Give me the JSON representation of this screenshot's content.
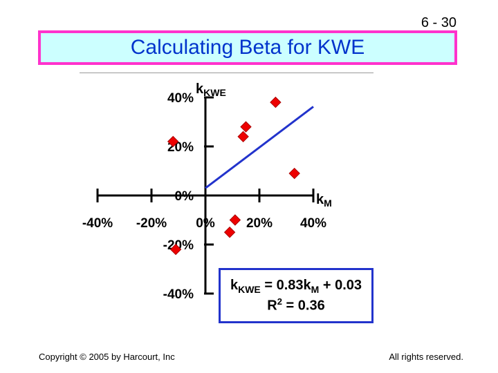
{
  "slide_number": "6 - 30",
  "title": "Calculating Beta for KWE",
  "chart_data": {
    "type": "scatter",
    "title": "Calculating Beta for KWE",
    "xlabel": "kM",
    "ylabel": "kKWE",
    "xlim": [
      -40,
      40
    ],
    "ylim": [
      -40,
      40
    ],
    "x_tick_labels": [
      "-40%",
      "-20%",
      "0%",
      "20%",
      "40%"
    ],
    "y_tick_labels": [
      "40%",
      "20%",
      "0%",
      "-20%",
      "-40%"
    ],
    "x_ticks": [
      -40,
      -20,
      0,
      20,
      40
    ],
    "y_ticks": [
      40,
      20,
      0,
      -20,
      -40
    ],
    "points": [
      {
        "x": -12,
        "y": 22
      },
      {
        "x": 11,
        "y": -10
      },
      {
        "x": 9,
        "y": -15
      },
      {
        "x": -11,
        "y": -22
      },
      {
        "x": 15,
        "y": 28
      },
      {
        "x": 14,
        "y": 24
      },
      {
        "x": 26,
        "y": 38
      },
      {
        "x": 33,
        "y": 9
      }
    ],
    "regression": {
      "slope": 0.83,
      "intercept": 3,
      "x_range": [
        0,
        40
      ]
    },
    "marker_color": "#ee0000",
    "line_color": "#2233cc",
    "grid": false,
    "equation": {
      "line1_prefix": "k",
      "line1_sub1": "KWE",
      "line1_mid": " = 0.83k",
      "line1_sub2": "M",
      "line1_suffix": " + 0.03",
      "line2_prefix": "R",
      "line2_sup": "2",
      "line2_suffix": " = 0.36"
    }
  },
  "footer": {
    "copyright": "Copyright © 2005 by Harcourt, Inc",
    "rights": "All rights reserved."
  }
}
